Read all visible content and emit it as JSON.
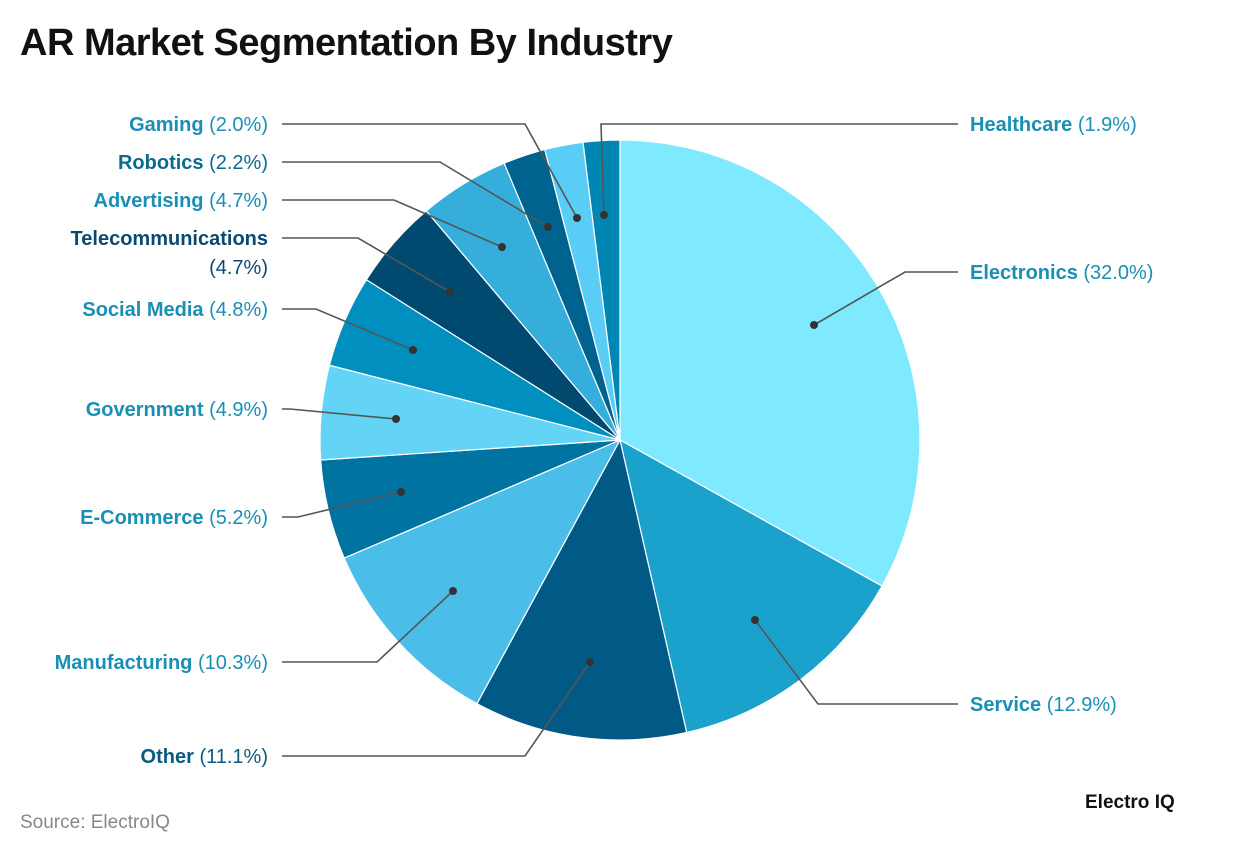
{
  "chart_data": {
    "type": "pie",
    "title": "AR Market Segmentation By Industry",
    "start_angle": "12 o'clock, clockwise",
    "slices": [
      {
        "label": "Electronics",
        "value": 32.0,
        "pct": "(32.0%)",
        "color": "#7fe9ff",
        "label_color": "#1a8fb5"
      },
      {
        "label": "Service",
        "value": 12.9,
        "pct": "(12.9%)",
        "color": "#1aa1cc",
        "label_color": "#1a8fb5"
      },
      {
        "label": "Other",
        "value": 11.1,
        "pct": "(11.1%)",
        "color": "#005a85",
        "label_color": "#0b5a80"
      },
      {
        "label": "Manufacturing",
        "value": 10.3,
        "pct": "(10.3%)",
        "color": "#4bbde9",
        "label_color": "#1a8fb5"
      },
      {
        "label": "E-Commerce",
        "value": 5.2,
        "pct": "(5.2%)",
        "color": "#0073a0",
        "label_color": "#1a8fb5"
      },
      {
        "label": "Government",
        "value": 4.9,
        "pct": "(4.9%)",
        "color": "#63d3f6",
        "label_color": "#1a8fb5"
      },
      {
        "label": "Social Media",
        "value": 4.8,
        "pct": "(4.8%)",
        "color": "#008fbf",
        "label_color": "#1a8fb5"
      },
      {
        "label": "Telecommunications",
        "value": 4.7,
        "pct": "(4.7%)",
        "color": "#004a70",
        "label_color": "#0b4a6e"
      },
      {
        "label": "Advertising",
        "value": 4.7,
        "pct": "(4.7%)",
        "color": "#36aedc",
        "label_color": "#1a8fb5"
      },
      {
        "label": "Robotics",
        "value": 2.2,
        "pct": "(2.2%)",
        "color": "#00628f",
        "label_color": "#0b6a90"
      },
      {
        "label": "Gaming",
        "value": 2.0,
        "pct": "(2.0%)",
        "color": "#5acdf7",
        "label_color": "#1a8fb5"
      },
      {
        "label": "Healthcare",
        "value": 1.9,
        "pct": "(1.9%)",
        "color": "#0086b3",
        "label_color": "#1a8fb5"
      }
    ]
  },
  "footer": {
    "source": "Source: ElectroIQ",
    "logo": "Electro IQ"
  }
}
